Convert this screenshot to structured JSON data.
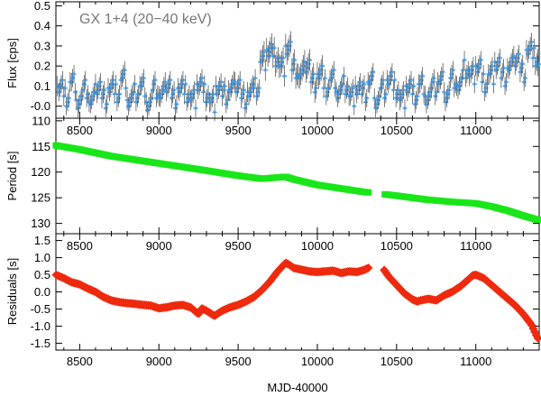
{
  "figure": {
    "xlabel": "MJD-40000",
    "xlim": [
      8350,
      11400
    ],
    "xticks": [
      8500,
      9000,
      9500,
      10000,
      10500,
      11000
    ]
  },
  "chart_data": [
    {
      "type": "scatter",
      "panel": "flux",
      "title": "GX 1+4 (20−40 keV)",
      "ylabel": "Flux [cps]",
      "ylim": [
        -0.06,
        0.52
      ],
      "yticks": [
        -0.0,
        0.1,
        0.2,
        0.3,
        0.4,
        0.5
      ],
      "ytick_labels": [
        "-0.0",
        "0.1",
        "0.2",
        "0.3",
        "0.4",
        "0.5"
      ],
      "color": "#3b8fd9",
      "error_color": "#444444",
      "series": [
        {
          "name": "flux",
          "x": [
            8360,
            8400,
            8440,
            8480,
            8520,
            8560,
            8600,
            8640,
            8680,
            8720,
            8760,
            8800,
            8840,
            8880,
            8920,
            8960,
            9000,
            9040,
            9080,
            9120,
            9160,
            9200,
            9240,
            9280,
            9320,
            9360,
            9400,
            9440,
            9480,
            9520,
            9560,
            9600,
            9640,
            9680,
            9720,
            9760,
            9800,
            9840,
            9880,
            9920,
            9960,
            10000,
            10040,
            10080,
            10120,
            10160,
            10200,
            10240,
            10280,
            10320,
            10360,
            10400,
            10440,
            10480,
            10520,
            10560,
            10600,
            10640,
            10680,
            10720,
            10760,
            10800,
            10840,
            10880,
            10920,
            10960,
            11000,
            11040,
            11080,
            11120,
            11160,
            11200,
            11240,
            11280,
            11320,
            11360,
            11390
          ],
          "y": [
            0.1,
            0.05,
            0.12,
            0.03,
            0.08,
            0.02,
            0.11,
            0.04,
            0.09,
            0.06,
            0.13,
            0.03,
            0.07,
            0.1,
            0.02,
            0.08,
            0.05,
            0.12,
            0.04,
            0.09,
            0.06,
            0.03,
            0.11,
            0.07,
            0.02,
            0.1,
            0.05,
            0.08,
            0.12,
            0.04,
            0.07,
            0.09,
            0.22,
            0.28,
            0.25,
            0.2,
            0.3,
            0.18,
            0.15,
            0.22,
            0.12,
            0.16,
            0.09,
            0.13,
            0.07,
            0.11,
            0.05,
            0.1,
            0.06,
            0.12,
            0.04,
            0.09,
            0.13,
            0.08,
            0.03,
            0.1,
            0.06,
            0.11,
            0.05,
            0.09,
            0.12,
            0.07,
            0.14,
            0.1,
            0.18,
            0.15,
            0.2,
            0.12,
            0.16,
            0.22,
            0.14,
            0.19,
            0.25,
            0.17,
            0.28,
            0.24,
            0.2
          ],
          "err": [
            0.05,
            0.05,
            0.05,
            0.05,
            0.05,
            0.05,
            0.05,
            0.05,
            0.05,
            0.05,
            0.05,
            0.05,
            0.05,
            0.05,
            0.05,
            0.05,
            0.05,
            0.05,
            0.05,
            0.05,
            0.05,
            0.05,
            0.05,
            0.05,
            0.05,
            0.05,
            0.05,
            0.05,
            0.05,
            0.05,
            0.05,
            0.05,
            0.06,
            0.06,
            0.06,
            0.06,
            0.06,
            0.06,
            0.06,
            0.06,
            0.06,
            0.06,
            0.05,
            0.05,
            0.05,
            0.05,
            0.05,
            0.05,
            0.05,
            0.05,
            0.05,
            0.05,
            0.05,
            0.05,
            0.05,
            0.05,
            0.05,
            0.05,
            0.05,
            0.05,
            0.05,
            0.05,
            0.05,
            0.05,
            0.05,
            0.05,
            0.05,
            0.05,
            0.05,
            0.05,
            0.05,
            0.05,
            0.05,
            0.05,
            0.05,
            0.05,
            0.05
          ]
        }
      ]
    },
    {
      "type": "scatter",
      "panel": "period",
      "ylabel": "Period [s]",
      "ylim": [
        132,
        109.5
      ],
      "yticks": [
        110,
        115,
        120,
        125,
        130
      ],
      "ytick_labels": [
        "110",
        "115",
        "120",
        "125",
        "130"
      ],
      "color": "#19e619",
      "series": [
        {
          "name": "period",
          "x": [
            8350,
            8500,
            8700,
            9000,
            9300,
            9500,
            9650,
            9800,
            9850,
            10000,
            10150,
            10300,
            10330,
            10420,
            10500,
            10700,
            10850,
            11000,
            11100,
            11200,
            11300,
            11390
          ],
          "y": [
            114.8,
            115.6,
            116.9,
            118.3,
            119.7,
            120.7,
            121.3,
            120.9,
            121.4,
            122.5,
            123.2,
            123.9,
            124.0,
            124.3,
            124.6,
            125.4,
            125.8,
            126.1,
            126.7,
            127.5,
            128.5,
            129.3
          ]
        }
      ],
      "gaps": [
        [
          10330,
          10420
        ]
      ]
    },
    {
      "type": "scatter",
      "panel": "residuals",
      "ylabel": "Residuals [s]",
      "ylim": [
        -1.7,
        1.7
      ],
      "yticks": [
        -1.5,
        -1.0,
        -0.5,
        0.0,
        0.5,
        1.0,
        1.5
      ],
      "ytick_labels": [
        "-1.5",
        "-1.0",
        "-0.5",
        "0.0",
        "0.5",
        "1.0",
        "1.5"
      ],
      "color": "#ee2a0e",
      "series": [
        {
          "name": "residuals",
          "x": [
            8350,
            8400,
            8450,
            8500,
            8550,
            8600,
            8650,
            8700,
            8750,
            8800,
            8850,
            8900,
            8950,
            9000,
            9050,
            9100,
            9150,
            9200,
            9250,
            9270,
            9300,
            9350,
            9400,
            9450,
            9500,
            9550,
            9600,
            9650,
            9700,
            9750,
            9780,
            9800,
            9820,
            9850,
            9900,
            9950,
            10000,
            10050,
            10100,
            10150,
            10200,
            10250,
            10300,
            10330,
            10420,
            10450,
            10500,
            10550,
            10600,
            10630,
            10650,
            10700,
            10750,
            10800,
            10850,
            10900,
            10950,
            10980,
            11000,
            11050,
            11100,
            11150,
            11200,
            11250,
            11300,
            11350,
            11390
          ],
          "y": [
            0.5,
            0.4,
            0.28,
            0.22,
            0.1,
            0.0,
            -0.15,
            -0.25,
            -0.3,
            -0.33,
            -0.35,
            -0.38,
            -0.4,
            -0.48,
            -0.45,
            -0.4,
            -0.38,
            -0.45,
            -0.65,
            -0.48,
            -0.55,
            -0.7,
            -0.55,
            -0.45,
            -0.38,
            -0.28,
            -0.15,
            0.05,
            0.3,
            0.6,
            0.75,
            0.85,
            0.8,
            0.7,
            0.65,
            0.6,
            0.58,
            0.6,
            0.62,
            0.55,
            0.6,
            0.58,
            0.65,
            0.72,
            0.65,
            0.45,
            0.2,
            -0.05,
            -0.22,
            -0.28,
            -0.25,
            -0.2,
            -0.25,
            -0.1,
            0.0,
            0.15,
            0.35,
            0.48,
            0.5,
            0.4,
            0.2,
            0.0,
            -0.2,
            -0.4,
            -0.65,
            -0.95,
            -1.35
          ]
        }
      ],
      "gaps": [
        [
          10330,
          10420
        ]
      ]
    }
  ]
}
